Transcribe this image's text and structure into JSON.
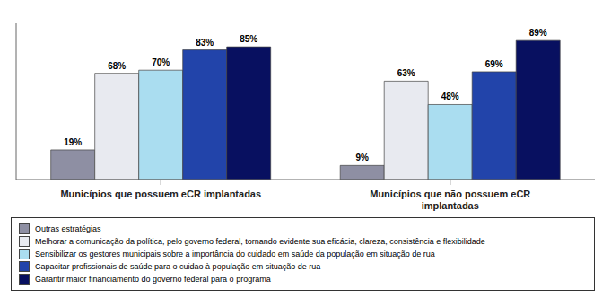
{
  "chart_data": {
    "type": "bar",
    "categories": [
      "Municípios que possuem eCR implantadas",
      "Municípios que não possuem eCR\nimplantadas"
    ],
    "series": [
      {
        "name": "Outras estratégias",
        "color": "#8E8FA3",
        "values": [
          19,
          9
        ],
        "value_labels": [
          "19%",
          "9%"
        ]
      },
      {
        "name": "Melhorar a comunicação da política, pelo governo federal, tornando evidente sua eficácia, clareza, consistência e flexibilidade",
        "color": "#E8EAF0",
        "values": [
          68,
          63
        ],
        "value_labels": [
          "68%",
          "63%"
        ]
      },
      {
        "name": "Sensibilizar os gestores municipais sobre a importância do cuidado em saúde da população em situação de rua",
        "color": "#AADDF0",
        "values": [
          70,
          48
        ],
        "value_labels": [
          "70%",
          "48%"
        ]
      },
      {
        "name": "Capacitar profissionais de saúde para o cuidao à população em situação de rua",
        "color": "#2244AA",
        "values": [
          83,
          69
        ],
        "value_labels": [
          "83%",
          "69%"
        ]
      },
      {
        "name": "Garantir maior financiamento do governo federal para o programa",
        "color": "#081060",
        "values": [
          85,
          89
        ],
        "value_labels": [
          "85%",
          "89%"
        ]
      }
    ],
    "ylim": [
      0,
      100
    ],
    "data_labels": true,
    "tick_labels": "x",
    "grid": false,
    "legend": "bottom"
  }
}
